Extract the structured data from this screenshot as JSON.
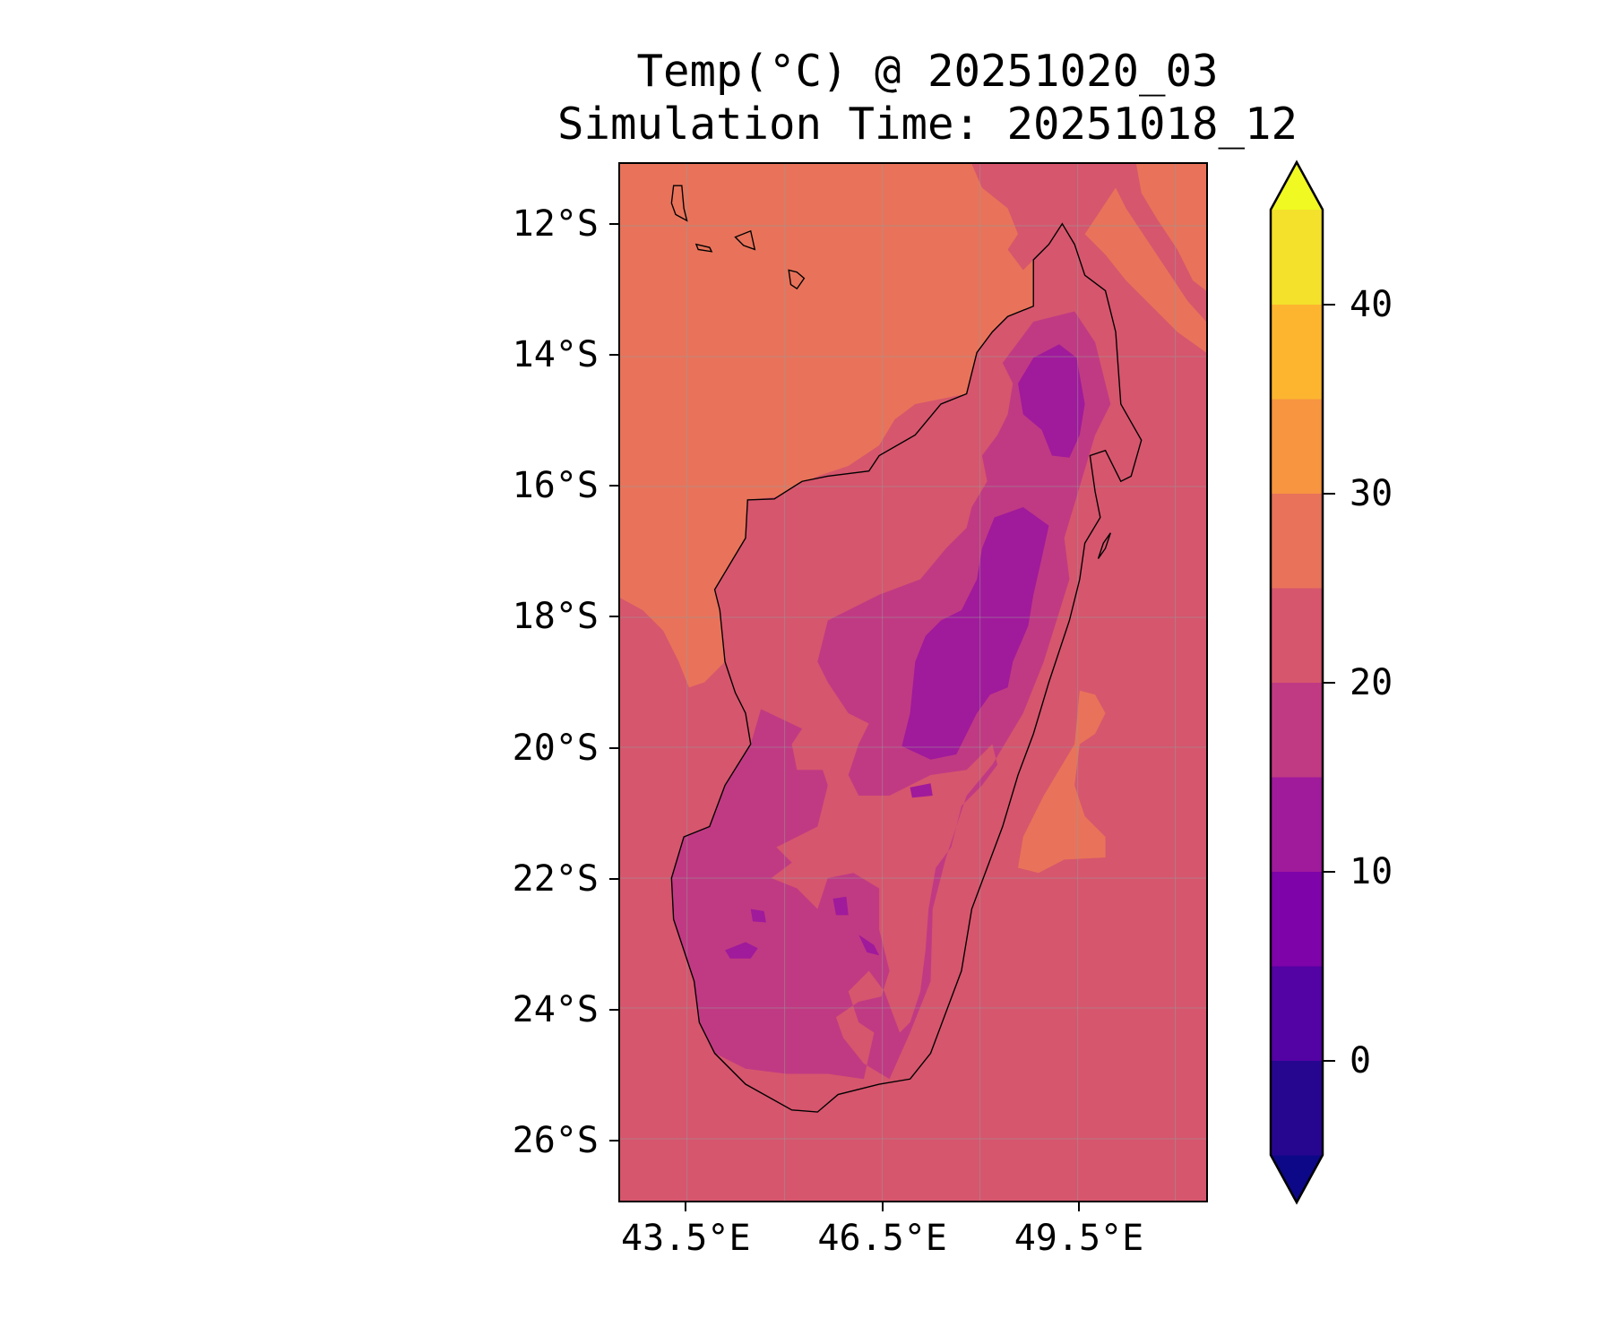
{
  "chart_data": {
    "type": "heatmap",
    "subtype": "filled-contour-map",
    "title": "Temp(°C) @ 20251020_03",
    "subtitle": "Simulation Time: 20251018_12",
    "xlabel": "",
    "ylabel": "",
    "region": "Madagascar",
    "lon_range": [
      42.47,
      51.47
    ],
    "lat_range_south": [
      11.05,
      26.95
    ],
    "x_ticks": [
      43.5,
      46.5,
      49.5
    ],
    "x_tick_labels": [
      "43.5°E",
      "46.5°E",
      "49.5°E"
    ],
    "y_ticks": [
      12,
      14,
      16,
      18,
      20,
      22,
      24,
      26
    ],
    "y_tick_labels": [
      "12°S",
      "14°S",
      "16°S",
      "18°S",
      "20°S",
      "22°S",
      "24°S",
      "26°S"
    ],
    "grid": true,
    "colorbar": {
      "placement": "right",
      "extend": "both",
      "levels": [
        -5,
        0,
        5,
        10,
        15,
        20,
        25,
        30,
        35,
        40,
        45
      ],
      "colors": [
        "#26068f",
        "#5302a3",
        "#7e03a8",
        "#a01a9c",
        "#c03a83",
        "#d6566d",
        "#e8735a",
        "#f79540",
        "#fdb52f",
        "#f3e12b"
      ],
      "under_color": "#0d0887",
      "over_color": "#f0f921",
      "ticks": [
        0,
        10,
        20,
        30,
        40
      ],
      "tick_labels": [
        "0",
        "10",
        "20",
        "30",
        "40"
      ]
    },
    "field_summary": {
      "ocean_west_north": "25-30",
      "ocean_general": "20-25",
      "ocean_east_patch": "25-30",
      "lowlands": "20-25",
      "interior": "15-20",
      "central_highlands": "10-15"
    }
  }
}
